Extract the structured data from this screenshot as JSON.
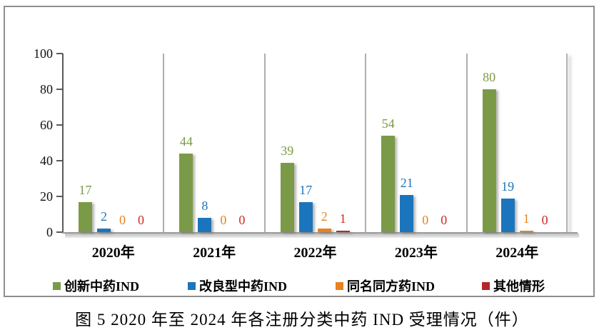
{
  "figure": {
    "caption": "图 5  2020 年至 2024 年各注册分类中药 IND 受理情况（件）"
  },
  "chart_data": {
    "type": "bar",
    "categories": [
      "2020年",
      "2021年",
      "2022年",
      "2023年",
      "2024年"
    ],
    "series": [
      {
        "name": "创新中药IND",
        "color": "#7B9A47",
        "label_color": "#7B9A47",
        "values": [
          17,
          44,
          39,
          54,
          80
        ]
      },
      {
        "name": "改良型中药IND",
        "color": "#1B75BC",
        "label_color": "#1B75BC",
        "values": [
          2,
          8,
          17,
          21,
          19
        ]
      },
      {
        "name": "同名同方药IND",
        "color": "#E8821E",
        "label_color": "#E8821E",
        "values": [
          0,
          0,
          2,
          0,
          1
        ]
      },
      {
        "name": "其他情形",
        "color": "#B2262C",
        "label_color": "#CE2B1F",
        "values": [
          0,
          0,
          1,
          0,
          0
        ]
      }
    ],
    "ylim": [
      0,
      100
    ],
    "yticks": [
      0,
      20,
      40,
      60,
      80,
      100
    ],
    "grid": "vertical-category-separators",
    "legend_position": "bottom",
    "legend_x_offsets": [
      67,
      256,
      463,
      668
    ],
    "value_labels_shown": true
  }
}
